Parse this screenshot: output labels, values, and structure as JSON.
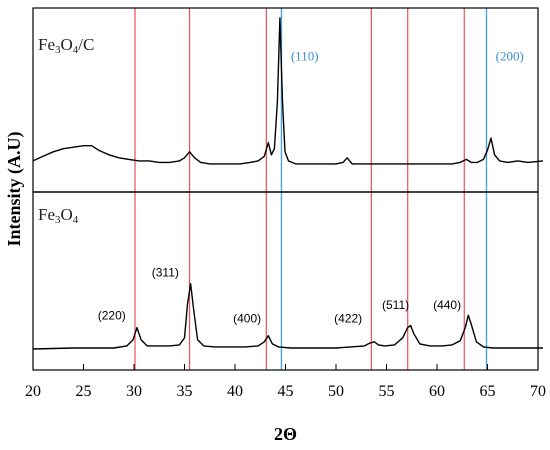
{
  "chart_data": {
    "type": "line",
    "xlabel": "2Θ",
    "ylabel": "Intensity (A.U)",
    "xlim": [
      20,
      70
    ],
    "xticks": [
      20,
      25,
      30,
      35,
      40,
      45,
      50,
      55,
      60,
      65,
      70
    ],
    "yticks_shown": false,
    "panels": [
      {
        "name": "Fe3O4/C",
        "label_main": "Fe",
        "label_sub1": "3",
        "label_mid": "O",
        "label_sub2": "4",
        "label_tail": "/C",
        "series": [
          {
            "x": [
              20,
              21,
              22,
              23,
              24,
              25,
              25.8,
              26.5,
              27.5,
              28.5,
              29.5,
              30.5,
              31.5,
              32.5,
              33.5,
              34.5,
              35.0,
              35.5,
              36.0,
              36.6,
              37.5,
              38.5,
              39.5,
              40.5,
              41.5,
              42.3,
              42.9,
              43.3,
              43.6,
              43.9,
              44.2,
              44.45,
              44.7,
              44.95,
              45.3,
              46,
              47,
              48,
              49,
              50,
              50.7,
              51.1,
              51.6,
              52.5,
              53.5,
              54.5,
              55.5,
              56.5,
              57.5,
              58.5,
              59.5,
              60.5,
              61.5,
              62.3,
              62.9,
              63.4,
              64,
              64.6,
              65.0,
              65.35,
              65.7,
              66.2,
              67,
              68,
              69,
              70.5
            ],
            "y": [
              0.06,
              0.09,
              0.12,
              0.14,
              0.15,
              0.16,
              0.16,
              0.13,
              0.1,
              0.08,
              0.07,
              0.06,
              0.06,
              0.05,
              0.05,
              0.06,
              0.08,
              0.12,
              0.08,
              0.05,
              0.04,
              0.04,
              0.04,
              0.04,
              0.05,
              0.06,
              0.09,
              0.18,
              0.1,
              0.14,
              0.45,
              1.0,
              0.45,
              0.12,
              0.06,
              0.04,
              0.04,
              0.04,
              0.04,
              0.04,
              0.05,
              0.08,
              0.04,
              0.04,
              0.04,
              0.04,
              0.04,
              0.04,
              0.04,
              0.04,
              0.04,
              0.04,
              0.04,
              0.05,
              0.07,
              0.05,
              0.05,
              0.07,
              0.13,
              0.21,
              0.1,
              0.06,
              0.05,
              0.06,
              0.05,
              0.06
            ]
          }
        ]
      },
      {
        "name": "Fe3O4",
        "label_main": "Fe",
        "label_sub1": "3",
        "label_mid": "O",
        "label_sub2": "4",
        "label_tail": "",
        "series": [
          {
            "x": [
              20,
              22,
              24,
              26,
              28,
              29.3,
              29.9,
              30.3,
              30.7,
              31.3,
              32.5,
              33.5,
              34.5,
              35.0,
              35.3,
              35.6,
              35.9,
              36.3,
              36.9,
              38,
              39.5,
              41,
              42.3,
              42.9,
              43.3,
              43.7,
              44.3,
              45.5,
              47,
              48.5,
              50,
              51.5,
              52.8,
              53.4,
              53.8,
              54.2,
              54.8,
              55.8,
              56.6,
              57.1,
              57.4,
              57.7,
              58.3,
              59.3,
              60.5,
              61.5,
              62.3,
              62.8,
              63.1,
              63.4,
              63.9,
              64.6,
              65.5,
              66.5,
              68,
              69.5,
              70.5
            ],
            "y": [
              0.01,
              0.015,
              0.02,
              0.02,
              0.02,
              0.04,
              0.1,
              0.22,
              0.1,
              0.04,
              0.04,
              0.04,
              0.05,
              0.12,
              0.45,
              0.65,
              0.4,
              0.1,
              0.04,
              0.03,
              0.03,
              0.03,
              0.04,
              0.08,
              0.14,
              0.06,
              0.03,
              0.02,
              0.02,
              0.02,
              0.02,
              0.03,
              0.04,
              0.07,
              0.08,
              0.05,
              0.04,
              0.05,
              0.12,
              0.22,
              0.24,
              0.16,
              0.06,
              0.04,
              0.04,
              0.05,
              0.09,
              0.22,
              0.34,
              0.25,
              0.08,
              0.03,
              0.02,
              0.02,
              0.02,
              0.02,
              0.02
            ]
          }
        ]
      }
    ],
    "reference_lines_red": [
      30.1,
      35.5,
      43.1,
      53.5,
      57.1,
      62.7
    ],
    "reference_lines_blue": [
      44.6,
      64.9
    ],
    "peak_labels": [
      {
        "text": "(220)",
        "x": 27.8,
        "panel": 1,
        "y": 0.3
      },
      {
        "text": "(311)",
        "x": 33.1,
        "panel": 1,
        "y": 0.72
      },
      {
        "text": "(400)",
        "x": 41.2,
        "panel": 1,
        "y": 0.27
      },
      {
        "text": "(422)",
        "x": 51.2,
        "panel": 1,
        "y": 0.27
      },
      {
        "text": "(511)",
        "x": 55.9,
        "panel": 1,
        "y": 0.4
      },
      {
        "text": "(440)",
        "x": 61.0,
        "panel": 1,
        "y": 0.4
      }
    ],
    "ref_labels": [
      {
        "text": "(110)",
        "x": 46.9,
        "panel": 0,
        "y": 0.72
      },
      {
        "text": "(200)",
        "x": 67.2,
        "panel": 0,
        "y": 0.72
      }
    ],
    "colors": {
      "red_line": "#e8505b",
      "blue_line": "#4aa3df",
      "blue_label": "#3a8fd0",
      "trace": "#000000"
    },
    "grid": false,
    "legend": "none"
  }
}
